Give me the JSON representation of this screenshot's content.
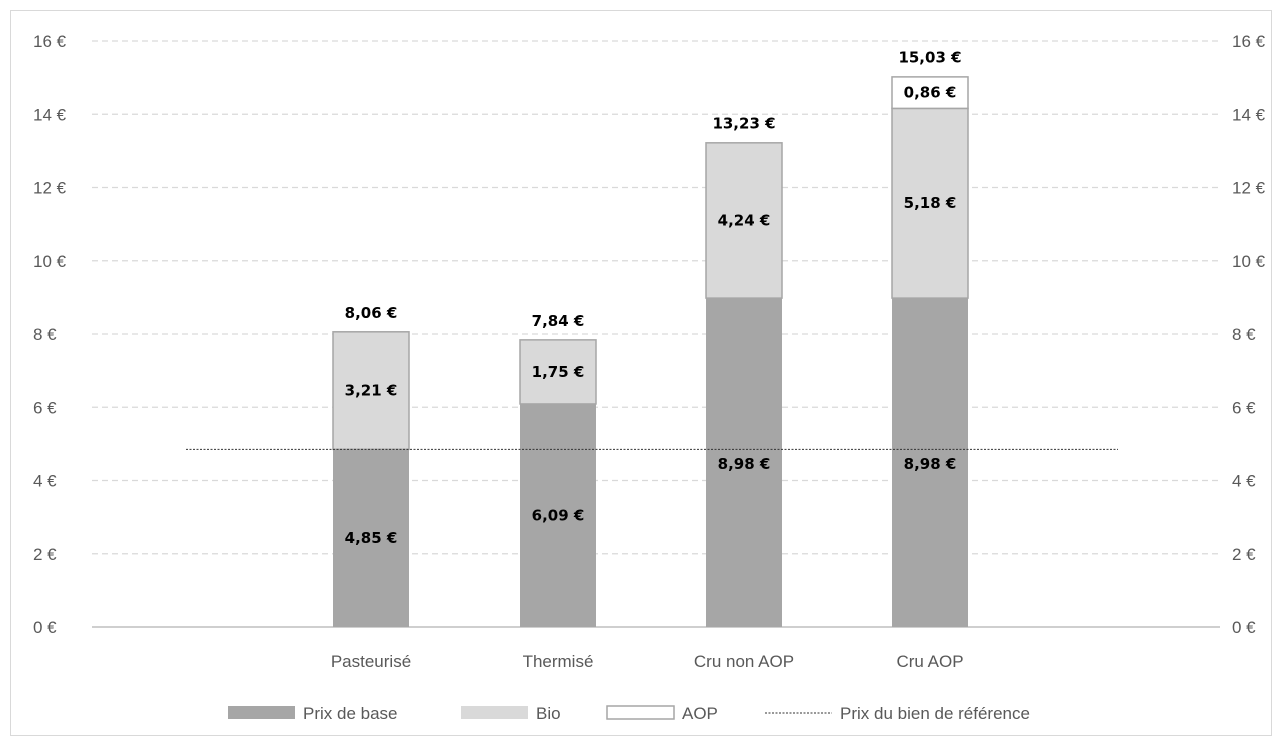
{
  "chart_data": {
    "type": "bar",
    "stacked": true,
    "categories": [
      "Pasteurisé",
      "Thermisé",
      "Cru non AOP",
      "Cru AOP"
    ],
    "series": [
      {
        "name": "Prix de base",
        "values": [
          4.85,
          6.09,
          8.98,
          8.98
        ],
        "labels": [
          "4,85 €",
          "6,09 €",
          "8,98 €",
          "8,98 €"
        ],
        "color": "#a6a6a6"
      },
      {
        "name": "Bio",
        "values": [
          3.21,
          1.75,
          4.24,
          5.18
        ],
        "labels": [
          "3,21 €",
          "1,75 €",
          "4,24 €",
          "5,18 €"
        ],
        "color": "#d9d9d9"
      },
      {
        "name": "AOP",
        "values": [
          0,
          0,
          0,
          0.86
        ],
        "labels": [
          "",
          "",
          "",
          "0,86 €"
        ],
        "color": "#ffffff"
      }
    ],
    "totals": [
      8.06,
      7.84,
      13.23,
      15.03
    ],
    "total_labels": [
      "8,06 €",
      "7,84 €",
      "13,23 €",
      "15,03 €"
    ],
    "reference_line": {
      "name": "Prix du bien de référence",
      "value": 4.85
    },
    "ylim": [
      0,
      16
    ],
    "yticks": [
      "0 €",
      "2 €",
      "4 €",
      "6 €",
      "8 €",
      "10 €",
      "12 €",
      "14 €",
      "16 €"
    ],
    "grid": true,
    "legend_position": "bottom",
    "title": "",
    "xlabel": "",
    "ylabel": ""
  }
}
